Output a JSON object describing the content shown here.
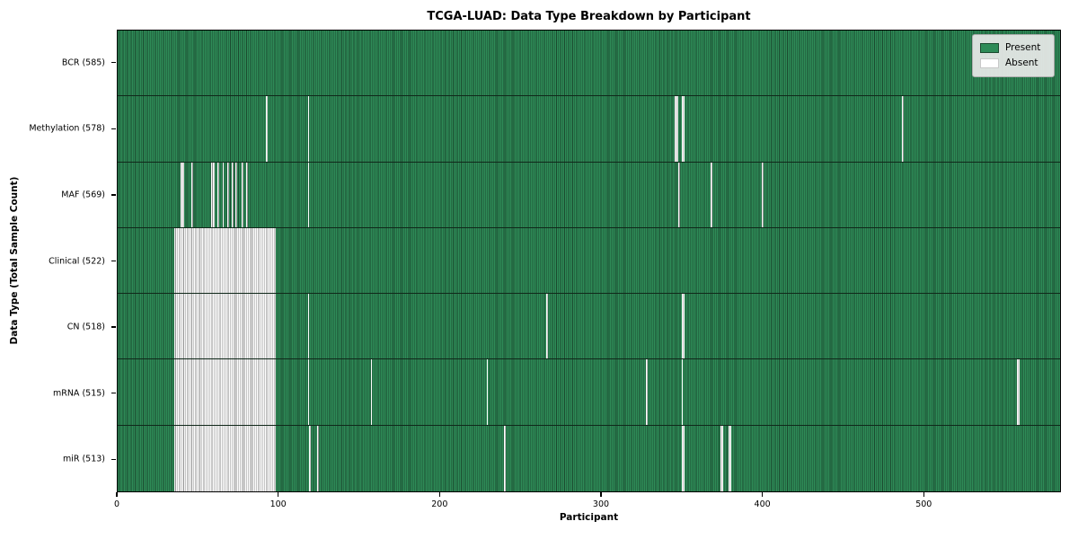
{
  "title": "TCGA-LUAD: Data Type Breakdown by Participant",
  "legend": {
    "present_label": "Present",
    "absent_label": "Absent"
  },
  "colors": {
    "present": "#2e8b57",
    "present_edge": "#1b4a2f",
    "absent": "#fdfdfd",
    "absent_edge": "#909090",
    "legend_bg": "#e9e9e9",
    "axis": "#000000"
  },
  "chart_data": {
    "type": "heatmap",
    "title": "TCGA-LUAD: Data Type Breakdown by Participant",
    "xlabel": "Participant",
    "ylabel": "Data Type (Total Sample Count)",
    "legend": [
      "Present",
      "Absent"
    ],
    "legend_position": "upper right",
    "grid": false,
    "participants_total": 585,
    "x_ticks": [
      0,
      100,
      200,
      300,
      400,
      500
    ],
    "x_range": [
      0,
      585
    ],
    "rows": [
      {
        "key": "bcr",
        "label": "BCR (585)",
        "data_type": "BCR",
        "present_count": 585,
        "absent_count": 0,
        "absent_ranges": []
      },
      {
        "key": "methylation",
        "label": "Methylation (578)",
        "data_type": "Methylation",
        "present_count": 578,
        "absent_count": 7,
        "absent_ranges": [
          [
            92,
            92
          ],
          [
            118,
            118
          ],
          [
            346,
            347
          ],
          [
            350,
            351
          ],
          [
            487,
            487
          ]
        ]
      },
      {
        "key": "maf",
        "label": "MAF (569)",
        "data_type": "MAF",
        "present_count": 569,
        "absent_count": 16,
        "absent_ranges": [
          [
            39,
            40
          ],
          [
            46,
            46
          ],
          [
            58,
            59
          ],
          [
            62,
            62
          ],
          [
            65,
            65
          ],
          [
            68,
            68
          ],
          [
            71,
            71
          ],
          [
            73,
            73
          ],
          [
            77,
            77
          ],
          [
            80,
            80
          ],
          [
            118,
            118
          ],
          [
            348,
            348
          ],
          [
            368,
            368
          ],
          [
            400,
            400
          ]
        ]
      },
      {
        "key": "clinical",
        "label": "Clinical (522)",
        "data_type": "Clinical",
        "present_count": 522,
        "absent_count": 63,
        "absent_ranges": [
          [
            35,
            97
          ]
        ]
      },
      {
        "key": "cn",
        "label": "CN (518)",
        "data_type": "CN",
        "present_count": 518,
        "absent_count": 67,
        "absent_ranges": [
          [
            35,
            97
          ],
          [
            118,
            118
          ],
          [
            266,
            266
          ],
          [
            350,
            351
          ]
        ]
      },
      {
        "key": "mrna",
        "label": "mRNA (515)",
        "data_type": "mRNA",
        "present_count": 515,
        "absent_count": 70,
        "absent_ranges": [
          [
            35,
            97
          ],
          [
            118,
            118
          ],
          [
            157,
            157
          ],
          [
            229,
            229
          ],
          [
            328,
            328
          ],
          [
            350,
            350
          ],
          [
            558,
            559
          ]
        ]
      },
      {
        "key": "mir",
        "label": "miR (513)",
        "data_type": "miR",
        "present_count": 513,
        "absent_count": 72,
        "absent_ranges": [
          [
            35,
            97
          ],
          [
            119,
            119
          ],
          [
            124,
            124
          ],
          [
            240,
            240
          ],
          [
            350,
            351
          ],
          [
            374,
            375
          ],
          [
            379,
            380
          ]
        ]
      }
    ]
  }
}
